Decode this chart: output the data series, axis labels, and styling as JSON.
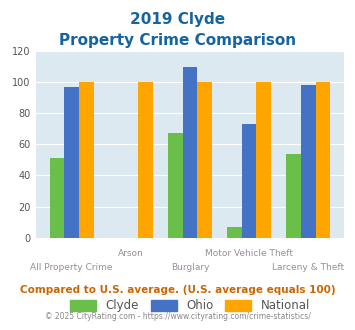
{
  "title_line1": "2019 Clyde",
  "title_line2": "Property Crime Comparison",
  "categories": [
    "All Property Crime",
    "Arson",
    "Burglary",
    "Motor Vehicle Theft",
    "Larceny & Theft"
  ],
  "clyde": [
    51,
    0,
    67,
    7,
    54
  ],
  "ohio": [
    97,
    0,
    110,
    73,
    98
  ],
  "national": [
    100,
    100,
    100,
    100,
    100
  ],
  "clyde_color": "#6abf4b",
  "ohio_color": "#4472c4",
  "national_color": "#ffa500",
  "title_color": "#1464a0",
  "bg_color": "#dce9f0",
  "ylim": [
    0,
    120
  ],
  "yticks": [
    0,
    20,
    40,
    60,
    80,
    100,
    120
  ],
  "xlabel_color": "#9b8b9b",
  "footer_text": "Compared to U.S. average. (U.S. average equals 100)",
  "copyright_text": "© 2025 CityRating.com - https://www.cityrating.com/crime-statistics/",
  "footer_color": "#cc6600",
  "copyright_color": "#888888",
  "bar_width": 0.25,
  "grid_color": "#ffffff",
  "xlabels_top": [
    "",
    "Arson",
    "",
    "Motor Vehicle Theft",
    ""
  ],
  "xlabels_bottom": [
    "All Property Crime",
    "",
    "Burglary",
    "",
    "Larceny & Theft"
  ]
}
